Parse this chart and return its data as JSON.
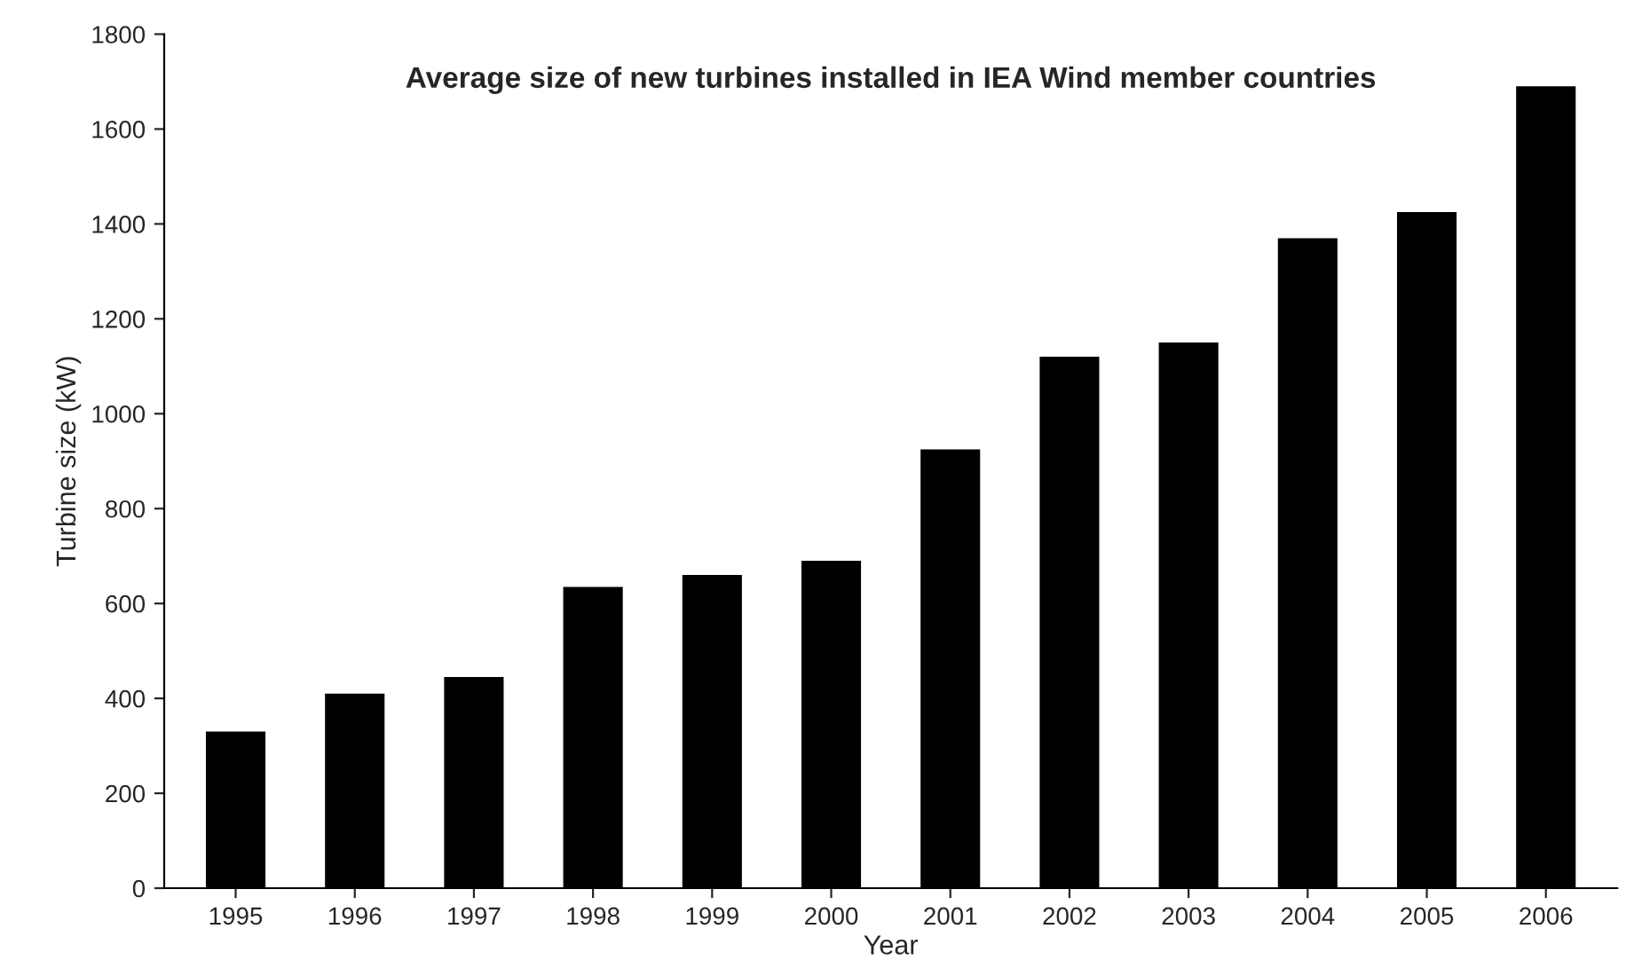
{
  "chart_data": {
    "type": "bar",
    "title": "Average size of new turbines installed in IEA Wind member countries",
    "xlabel": "Year",
    "ylabel": "Turbine size (kW)",
    "categories": [
      "1995",
      "1996",
      "1997",
      "1998",
      "1999",
      "2000",
      "2001",
      "2002",
      "2003",
      "2004",
      "2005",
      "2006"
    ],
    "values": [
      330,
      410,
      445,
      635,
      660,
      690,
      925,
      1120,
      1150,
      1370,
      1425,
      1690
    ],
    "color": "#000000",
    "ylim": [
      0,
      1800
    ],
    "yticks": [
      0,
      200,
      400,
      600,
      800,
      1000,
      1200,
      1400,
      1600,
      1800
    ],
    "grid": false,
    "legend": false
  }
}
